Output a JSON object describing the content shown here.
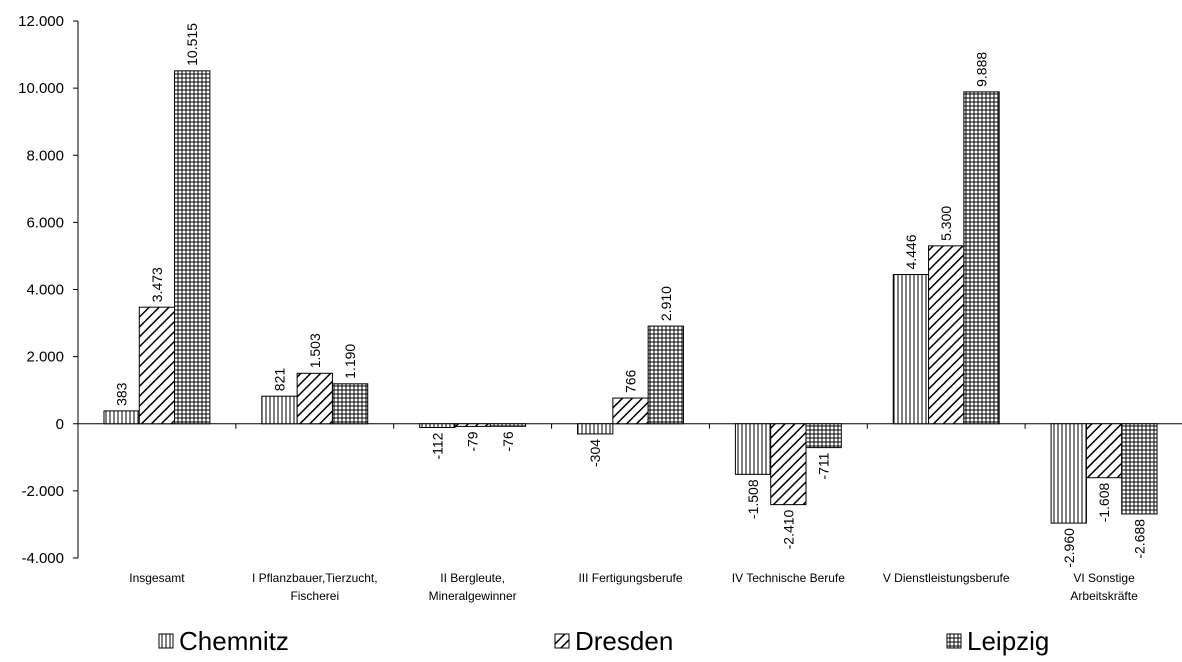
{
  "chart_data": {
    "type": "bar",
    "categories": [
      [
        "Insgesamt"
      ],
      [
        "I Pflanzbauer,Tierzucht,",
        "Fischerei"
      ],
      [
        "II Bergleute,",
        "Mineralgewinner"
      ],
      [
        "III Fertigungsberufe"
      ],
      [
        "IV Technische Berufe"
      ],
      [
        "V Dienstleistungsberufe"
      ],
      [
        "VI Sonstige",
        "Arbeitskräfte"
      ]
    ],
    "series": [
      {
        "name": "Chemnitz",
        "pattern": "vertical-lines",
        "values": [
          383,
          821,
          -112,
          -304,
          -1508,
          4446,
          -2960
        ],
        "labels": [
          "383",
          "821",
          "-112",
          "-304",
          "-1.508",
          "4.446",
          "-2.960"
        ]
      },
      {
        "name": "Dresden",
        "pattern": "diagonal-lines",
        "values": [
          3473,
          1503,
          -79,
          766,
          -2410,
          5300,
          -1608
        ],
        "labels": [
          "3.473",
          "1.503",
          "-79",
          "766",
          "-2.410",
          "5.300",
          "-1.608"
        ]
      },
      {
        "name": "Leipzig",
        "pattern": "grid",
        "values": [
          10515,
          1190,
          -76,
          2910,
          -711,
          9888,
          -2688
        ],
        "labels": [
          "10.515",
          "1.190",
          "-76",
          "2.910",
          "-711",
          "9.888",
          "-2.688"
        ]
      }
    ],
    "ylim": [
      -4000,
      12000
    ],
    "yticks": [
      12000,
      10000,
      8000,
      6000,
      4000,
      2000,
      0,
      -2000,
      -4000
    ],
    "ytick_labels": [
      "12.000",
      "10.000",
      "8.000",
      "6.000",
      "4.000",
      "2.000",
      "0",
      "-2.000",
      "-4.000"
    ],
    "grid": false,
    "legend_position": "bottom",
    "title": "",
    "xlabel": "",
    "ylabel": ""
  }
}
